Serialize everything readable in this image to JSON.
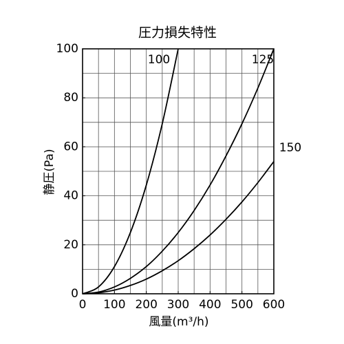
{
  "chart_data": {
    "type": "line",
    "title": "圧力損失特性",
    "x_label": "風量(m³/h)",
    "y_label": "静圧(Pa)",
    "x": [
      0,
      50,
      100,
      150,
      200,
      250,
      300,
      350,
      400,
      450,
      500,
      550,
      600
    ],
    "series": [
      {
        "name": "100",
        "color": "#000000",
        "values": [
          0,
          2.8,
          11.1,
          25,
          44.4,
          69.4,
          100,
          null,
          null,
          null,
          null,
          null,
          null
        ]
      },
      {
        "name": "125",
        "color": "#000000",
        "values": [
          0,
          0.7,
          2.8,
          6.3,
          11.1,
          17.4,
          25,
          34,
          44.4,
          56.3,
          69.4,
          84,
          100
        ]
      },
      {
        "name": "150",
        "color": "#000000",
        "values": [
          0,
          0.4,
          1.5,
          3.4,
          6,
          9.4,
          13.5,
          18.4,
          24,
          30.4,
          37.5,
          45.4,
          54
        ]
      }
    ],
    "xlim": [
      0,
      600
    ],
    "ylim": [
      0,
      100
    ],
    "xticks": [
      0,
      100,
      200,
      300,
      400,
      500,
      600
    ],
    "yticks": [
      0,
      20,
      40,
      60,
      80,
      100
    ],
    "xgrid": [
      0,
      50,
      100,
      150,
      200,
      250,
      300,
      350,
      400,
      450,
      500,
      550,
      600
    ],
    "ygrid": [
      0,
      10,
      20,
      30,
      40,
      50,
      60,
      70,
      80,
      90,
      100
    ],
    "grid": true
  }
}
